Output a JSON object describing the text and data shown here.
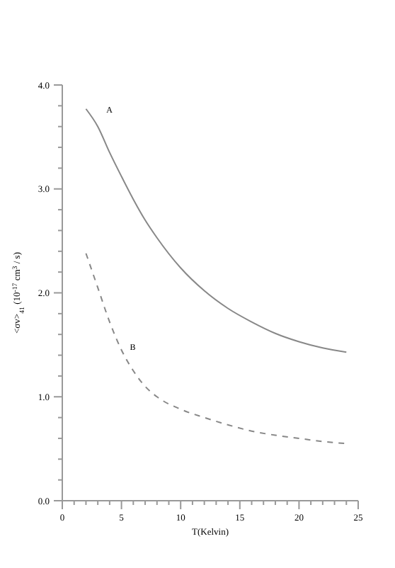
{
  "chart_data": {
    "type": "line",
    "xlabel": "T(Kelvin)",
    "ylabel": "<σv>$_{41}$ (10$^{-17}$ cm$^{3}$ / s)",
    "xlim": [
      0,
      25
    ],
    "ylim": [
      0,
      4
    ],
    "xticks": [
      0,
      {
        "value": 1,
        "label": null
      },
      {
        "value": 2,
        "label": null
      },
      {
        "value": 3,
        "label": null
      },
      {
        "value": 4,
        "label": null
      },
      5,
      {
        "value": 6,
        "label": null
      },
      {
        "value": 7,
        "label": null
      },
      {
        "value": 8,
        "label": null
      },
      {
        "value": 9,
        "label": null
      },
      10,
      {
        "value": 11,
        "label": null
      },
      {
        "value": 12,
        "label": null
      },
      {
        "value": 13,
        "label": null
      },
      {
        "value": 14,
        "label": null
      },
      15,
      {
        "value": 16,
        "label": null
      },
      {
        "value": 17,
        "label": null
      },
      {
        "value": 18,
        "label": null
      },
      {
        "value": 19,
        "label": null
      },
      20,
      {
        "value": 21,
        "label": null
      },
      {
        "value": 22,
        "label": null
      },
      {
        "value": 23,
        "label": null
      },
      {
        "value": 24,
        "label": null
      },
      25
    ],
    "yticks": [
      {
        "value": 0,
        "label": "0.0"
      },
      {
        "value": 0.2,
        "label": null
      },
      {
        "value": 0.4,
        "label": null
      },
      {
        "value": 0.6,
        "label": null
      },
      {
        "value": 0.8,
        "label": null
      },
      {
        "value": 1,
        "label": "1.0"
      },
      {
        "value": 1.2,
        "label": null
      },
      {
        "value": 1.4,
        "label": null
      },
      {
        "value": 1.6,
        "label": null
      },
      {
        "value": 1.8,
        "label": null
      },
      {
        "value": 2,
        "label": "2.0"
      },
      {
        "value": 2.2,
        "label": null
      },
      {
        "value": 2.4,
        "label": null
      },
      {
        "value": 2.6,
        "label": null
      },
      {
        "value": 2.8,
        "label": null
      },
      {
        "value": 3,
        "label": "3.0"
      },
      {
        "value": 3.2,
        "label": null
      },
      {
        "value": 3.4,
        "label": null
      },
      {
        "value": 3.6,
        "label": null
      },
      {
        "value": 3.8,
        "label": null
      },
      {
        "value": 4,
        "label": "4.0"
      }
    ],
    "x": [
      2,
      3,
      4,
      5,
      6,
      7,
      8,
      10,
      12,
      14,
      16,
      18,
      20,
      22,
      24
    ],
    "series": [
      {
        "name": "A",
        "color": "#888888",
        "line_style": "solid",
        "values": [
          3.77,
          3.6,
          3.35,
          3.12,
          2.9,
          2.7,
          2.53,
          2.24,
          2.02,
          1.85,
          1.72,
          1.61,
          1.53,
          1.47,
          1.43
        ]
      },
      {
        "name": "B",
        "color": "#888888",
        "line_style": "dashed",
        "values": [
          2.38,
          2.05,
          1.72,
          1.45,
          1.25,
          1.1,
          1.0,
          0.88,
          0.8,
          0.73,
          0.67,
          0.63,
          0.6,
          0.57,
          0.55
        ]
      }
    ]
  }
}
